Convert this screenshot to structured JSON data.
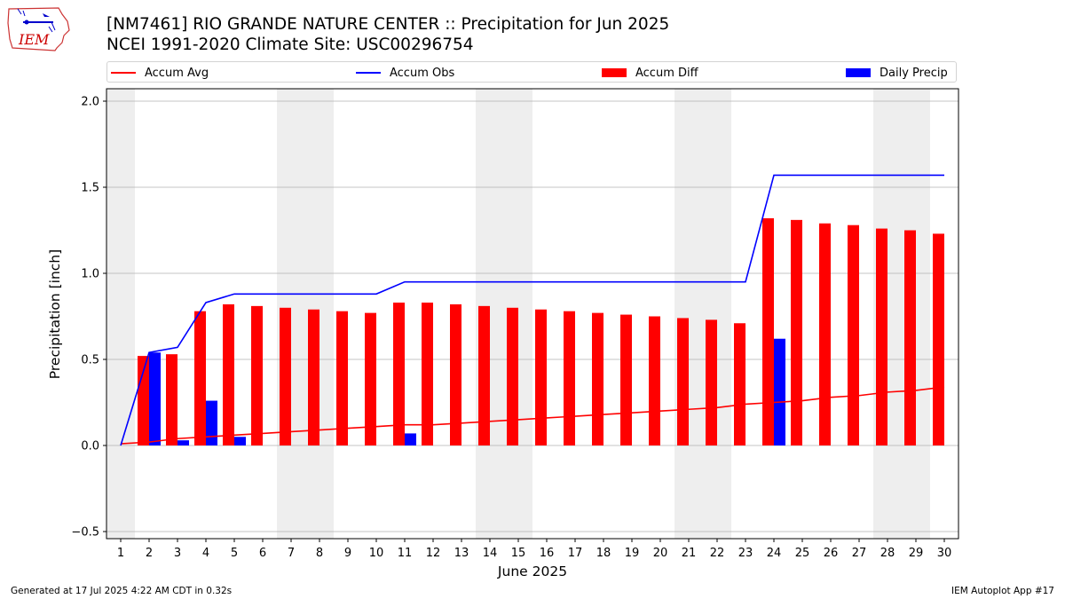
{
  "logo": {
    "icon": "iem-logo-icon",
    "text": "IEM",
    "color": "#cc0000"
  },
  "header": {
    "title_line1": "[NM7461] RIO GRANDE NATURE CENTER :: Precipitation for Jun 2025",
    "title_line2": "NCEI 1991-2020 Climate Site: USC00296754"
  },
  "legend": {
    "accum_avg": "Accum Avg",
    "accum_obs": "Accum Obs",
    "accum_diff": "Accum Diff",
    "daily_precip": "Daily Precip"
  },
  "footer": {
    "left": "Generated at 17 Jul 2025 4:22 AM CDT in 0.32s",
    "right": "IEM Autoplot App #17"
  },
  "chart_data": {
    "type": "bar",
    "xlabel": "June 2025",
    "ylabel": "Precipitation [inch]",
    "x": [
      1,
      2,
      3,
      4,
      5,
      6,
      7,
      8,
      9,
      10,
      11,
      12,
      13,
      14,
      15,
      16,
      17,
      18,
      19,
      20,
      21,
      22,
      23,
      24,
      25,
      26,
      27,
      28,
      29,
      30
    ],
    "ylim": [
      -0.5,
      2.0
    ],
    "yticks": [
      "−0.5",
      "0.0",
      "0.5",
      "1.0",
      "1.5",
      "2.0"
    ],
    "ytick_values": [
      -0.5,
      0.0,
      0.5,
      1.0,
      1.5,
      2.0
    ],
    "grid": true,
    "weekend_shading_days": [
      1,
      7,
      8,
      14,
      15,
      21,
      22,
      28,
      29
    ],
    "legend_placement": "top",
    "colors": {
      "accum_avg": "#ff0000",
      "accum_obs": "#0000ff",
      "accum_diff": "#ff0000",
      "daily_precip": "#0000ff",
      "weekend": "#eeeeee",
      "grid": "#b0b0b0"
    },
    "series": [
      {
        "name": "Accum Avg",
        "kind": "line",
        "values": [
          0.01,
          0.02,
          0.04,
          0.05,
          0.06,
          0.07,
          0.08,
          0.09,
          0.1,
          0.11,
          0.12,
          0.12,
          0.13,
          0.14,
          0.15,
          0.16,
          0.17,
          0.18,
          0.19,
          0.2,
          0.21,
          0.22,
          0.24,
          0.25,
          0.26,
          0.28,
          0.29,
          0.31,
          0.32,
          0.34
        ]
      },
      {
        "name": "Accum Obs",
        "kind": "line",
        "values": [
          0.0,
          0.54,
          0.57,
          0.83,
          0.88,
          0.88,
          0.88,
          0.88,
          0.88,
          0.88,
          0.95,
          0.95,
          0.95,
          0.95,
          0.95,
          0.95,
          0.95,
          0.95,
          0.95,
          0.95,
          0.95,
          0.95,
          0.95,
          1.57,
          1.57,
          1.57,
          1.57,
          1.57,
          1.57,
          1.57
        ]
      },
      {
        "name": "Accum Diff",
        "kind": "bar",
        "values": [
          0.0,
          0.52,
          0.53,
          0.78,
          0.82,
          0.81,
          0.8,
          0.79,
          0.78,
          0.77,
          0.83,
          0.83,
          0.82,
          0.81,
          0.8,
          0.79,
          0.78,
          0.77,
          0.76,
          0.75,
          0.74,
          0.73,
          0.71,
          1.32,
          1.31,
          1.29,
          1.28,
          1.26,
          1.25,
          1.23
        ]
      },
      {
        "name": "Daily Precip",
        "kind": "bar",
        "values": [
          0.0,
          0.54,
          0.03,
          0.26,
          0.05,
          0.0,
          0.0,
          0.0,
          0.0,
          0.0,
          0.07,
          0.0,
          0.0,
          0.0,
          0.0,
          0.0,
          0.0,
          0.0,
          0.0,
          0.0,
          0.0,
          0.0,
          0.0,
          0.62,
          0.0,
          0.0,
          0.0,
          0.0,
          0.0,
          0.0
        ]
      }
    ]
  }
}
